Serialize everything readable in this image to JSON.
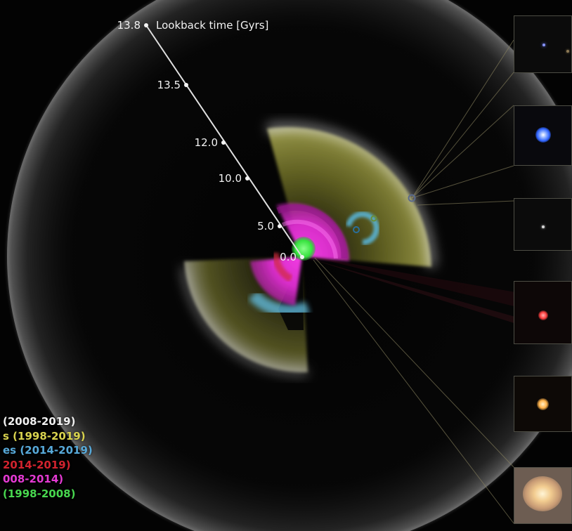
{
  "axis": {
    "title": "Lookback time [Gyrs]",
    "ticks": [
      "0.0",
      "5.0",
      "10.0",
      "12.0",
      "13.5",
      "13.8"
    ]
  },
  "legend": [
    {
      "text": "(2008-2019)",
      "color": "#f0f0f0"
    },
    {
      "text": "s (1998-2019)",
      "color": "#d8d24e"
    },
    {
      "text": "es (2014-2019)",
      "color": "#57a9d9"
    },
    {
      "text": "2014-2019)",
      "color": "#d2232e"
    },
    {
      "text": "008-2014)",
      "color": "#e43ad3"
    },
    {
      "text": "(1998-2008)",
      "color": "#48d84f"
    }
  ],
  "thumbnails": [
    {
      "name": "thumbnail-faint-source",
      "glow": "#6a7cff"
    },
    {
      "name": "thumbnail-blue-quasar",
      "glow": "#2f64ff"
    },
    {
      "name": "thumbnail-faint-point",
      "glow": "#cfcfcf"
    },
    {
      "name": "thumbnail-red-galaxy",
      "glow": "#ff4040"
    },
    {
      "name": "thumbnail-orange-galaxy",
      "glow": "#ffb24a"
    },
    {
      "name": "thumbnail-bright-galaxy",
      "glow": "#ffe7c2"
    }
  ]
}
